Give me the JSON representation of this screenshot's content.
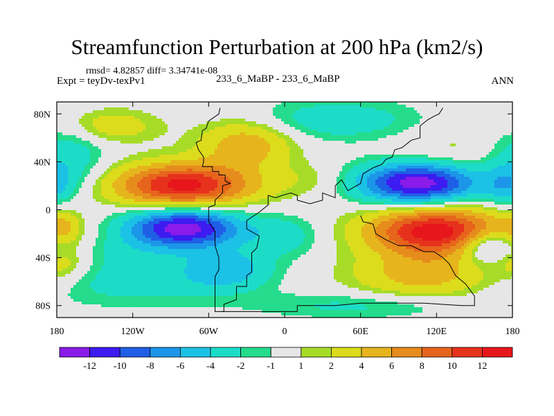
{
  "chart_data": {
    "type": "heatmap",
    "title": "Streamfunction Perturbation at 200 hPa (km2/s)",
    "stats_label": "rmsd= 4.82857 diff= 3.34741e-08",
    "expt_label": "Expt = teyDv-texPv1",
    "cases_label": "233_6_MaBP - 233_6_MaBP",
    "season": "ANN",
    "x_range": [
      -180,
      180
    ],
    "y_range": [
      -90,
      90
    ],
    "x_ticks": [
      {
        "value": -180,
        "label": "180"
      },
      {
        "value": -120,
        "label": "120W"
      },
      {
        "value": -60,
        "label": "60W"
      },
      {
        "value": 0,
        "label": "0"
      },
      {
        "value": 60,
        "label": "60E"
      },
      {
        "value": 120,
        "label": "120E"
      },
      {
        "value": 180,
        "label": "180"
      }
    ],
    "y_ticks": [
      {
        "value": 80,
        "label": "80N"
      },
      {
        "value": 40,
        "label": "40N"
      },
      {
        "value": 0,
        "label": "0"
      },
      {
        "value": -40,
        "label": "40S"
      },
      {
        "value": -80,
        "label": "80S"
      }
    ],
    "colorbar": {
      "colors": [
        "#8a1be8",
        "#3c1cf0",
        "#1f5fe6",
        "#1c96e8",
        "#1cc1e6",
        "#1cdcc8",
        "#24dc8c",
        "#e6e6e6",
        "#a6dc28",
        "#dcdc1c",
        "#e6b41c",
        "#e68c1c",
        "#e6641c",
        "#e6321c",
        "#e6161c"
      ],
      "labels": [
        "-12",
        "-10",
        "-8",
        "-6",
        "-4",
        "-2",
        "-1",
        "1",
        "2",
        "4",
        "6",
        "8",
        "10",
        "12"
      ],
      "levels": [
        -12,
        -10,
        -8,
        -6,
        -4,
        -2,
        -1,
        1,
        2,
        4,
        6,
        8,
        10,
        12
      ]
    },
    "features": [
      {
        "lon": -80,
        "lat": 20,
        "sx": 38,
        "sy": 13,
        "amp": 13
      },
      {
        "lon": -80,
        "lat": -15,
        "sx": 32,
        "sy": 12,
        "amp": -13.5
      },
      {
        "lon": 105,
        "lat": 22,
        "sx": 33,
        "sy": 12,
        "amp": -13.5
      },
      {
        "lon": 120,
        "lat": -18,
        "sx": 38,
        "sy": 14,
        "amp": 13.5
      },
      {
        "lon": -30,
        "lat": 55,
        "sx": 26,
        "sy": 14,
        "amp": 5.5
      },
      {
        "lon": -140,
        "lat": 70,
        "sx": 28,
        "sy": 10,
        "amp": 3.5
      },
      {
        "lon": -170,
        "lat": 45,
        "sx": 20,
        "sy": 22,
        "amp": -3.5
      },
      {
        "lon": -45,
        "lat": -50,
        "sx": 25,
        "sy": 12,
        "amp": -5
      },
      {
        "lon": 0,
        "lat": -22,
        "sx": 20,
        "sy": 12,
        "amp": -3
      },
      {
        "lon": 40,
        "lat": 75,
        "sx": 45,
        "sy": 12,
        "amp": -3.5
      },
      {
        "lon": 130,
        "lat": 50,
        "sx": 28,
        "sy": 12,
        "amp": 1.5
      },
      {
        "lon": 110,
        "lat": -55,
        "sx": 40,
        "sy": 14,
        "amp": 5
      },
      {
        "lon": 160,
        "lat": -30,
        "sx": 16,
        "sy": 10,
        "amp": -6
      },
      {
        "lon": 60,
        "lat": -80,
        "sx": 60,
        "sy": 8,
        "amp": -2.5
      },
      {
        "lon": -120,
        "lat": -60,
        "sx": 50,
        "sy": 14,
        "amp": -3
      },
      {
        "lon": -175,
        "lat": -15,
        "sx": 10,
        "sy": 10,
        "amp": 3
      },
      {
        "lon": -175,
        "lat": -45,
        "sx": 14,
        "sy": 10,
        "amp": 3
      },
      {
        "lon": 175,
        "lat": 20,
        "sx": 12,
        "sy": 12,
        "amp": -4
      },
      {
        "lon": -130,
        "lat": -35,
        "sx": 30,
        "sy": 10,
        "amp": -1.5
      },
      {
        "lon": 20,
        "lat": 25,
        "sx": 22,
        "sy": 10,
        "amp": 1.5
      }
    ],
    "land_outline": [
      [
        -51,
        85
      ],
      [
        -52,
        80
      ],
      [
        -60,
        74
      ],
      [
        -62,
        68
      ],
      [
        -65,
        66
      ],
      [
        -66,
        58
      ],
      [
        -70,
        56
      ],
      [
        -68,
        50
      ],
      [
        -64,
        44
      ],
      [
        -64,
        40
      ],
      [
        -65,
        36
      ],
      [
        -57,
        36
      ],
      [
        -57,
        32
      ],
      [
        -52,
        32
      ],
      [
        -52,
        29
      ],
      [
        -47,
        29
      ],
      [
        -47,
        24
      ],
      [
        -43,
        22
      ],
      [
        -49,
        20
      ],
      [
        -49,
        14
      ],
      [
        -55,
        8
      ],
      [
        -55,
        4
      ],
      [
        -60,
        2
      ],
      [
        -60,
        -10
      ],
      [
        -55,
        -18
      ],
      [
        -55,
        -30
      ],
      [
        -52,
        -40
      ],
      [
        -52,
        -50
      ],
      [
        -55,
        -56
      ],
      [
        -55,
        -78
      ],
      [
        -55,
        -85
      ],
      [
        -48,
        -85
      ],
      [
        -48,
        -79
      ],
      [
        -38,
        -75
      ],
      [
        -38,
        -64
      ],
      [
        -30,
        -64
      ],
      [
        -30,
        -55
      ],
      [
        -26,
        -52
      ],
      [
        -26,
        -36
      ],
      [
        -22,
        -32
      ],
      [
        -20,
        -22
      ],
      [
        -30,
        -16
      ],
      [
        -30,
        -9
      ],
      [
        -20,
        -2
      ],
      [
        -13,
        4
      ],
      [
        -13,
        12
      ],
      [
        -7,
        10
      ],
      [
        -2,
        12
      ],
      [
        5,
        14
      ],
      [
        10,
        12
      ],
      [
        10,
        8
      ],
      [
        20,
        5
      ],
      [
        30,
        8
      ],
      [
        30,
        14
      ],
      [
        40,
        10
      ],
      [
        40,
        20
      ],
      [
        45,
        25
      ],
      [
        50,
        16
      ],
      [
        60,
        22
      ],
      [
        62,
        30
      ],
      [
        70,
        35
      ],
      [
        77,
        38
      ],
      [
        80,
        42
      ],
      [
        85,
        44
      ],
      [
        87,
        50
      ],
      [
        93,
        52
      ],
      [
        100,
        58
      ],
      [
        107,
        60
      ],
      [
        107,
        70
      ],
      [
        113,
        75
      ],
      [
        118,
        78
      ],
      [
        122,
        80
      ],
      [
        125,
        85
      ]
    ],
    "land_outline_2": [
      [
        60,
        -5
      ],
      [
        62,
        -10
      ],
      [
        70,
        -12
      ],
      [
        72,
        -20
      ],
      [
        80,
        -25
      ],
      [
        90,
        -30
      ],
      [
        100,
        -30
      ],
      [
        110,
        -35
      ],
      [
        118,
        -35
      ],
      [
        125,
        -40
      ],
      [
        130,
        -45
      ],
      [
        135,
        -55
      ],
      [
        143,
        -62
      ],
      [
        150,
        -72
      ],
      [
        150,
        -80
      ],
      [
        140,
        -80
      ],
      [
        110,
        -78
      ],
      [
        80,
        -78
      ],
      [
        60,
        -78
      ],
      [
        40,
        -80
      ],
      [
        20,
        -80
      ],
      [
        10,
        -80
      ],
      [
        10,
        -85
      ],
      [
        -50,
        -85
      ]
    ]
  }
}
